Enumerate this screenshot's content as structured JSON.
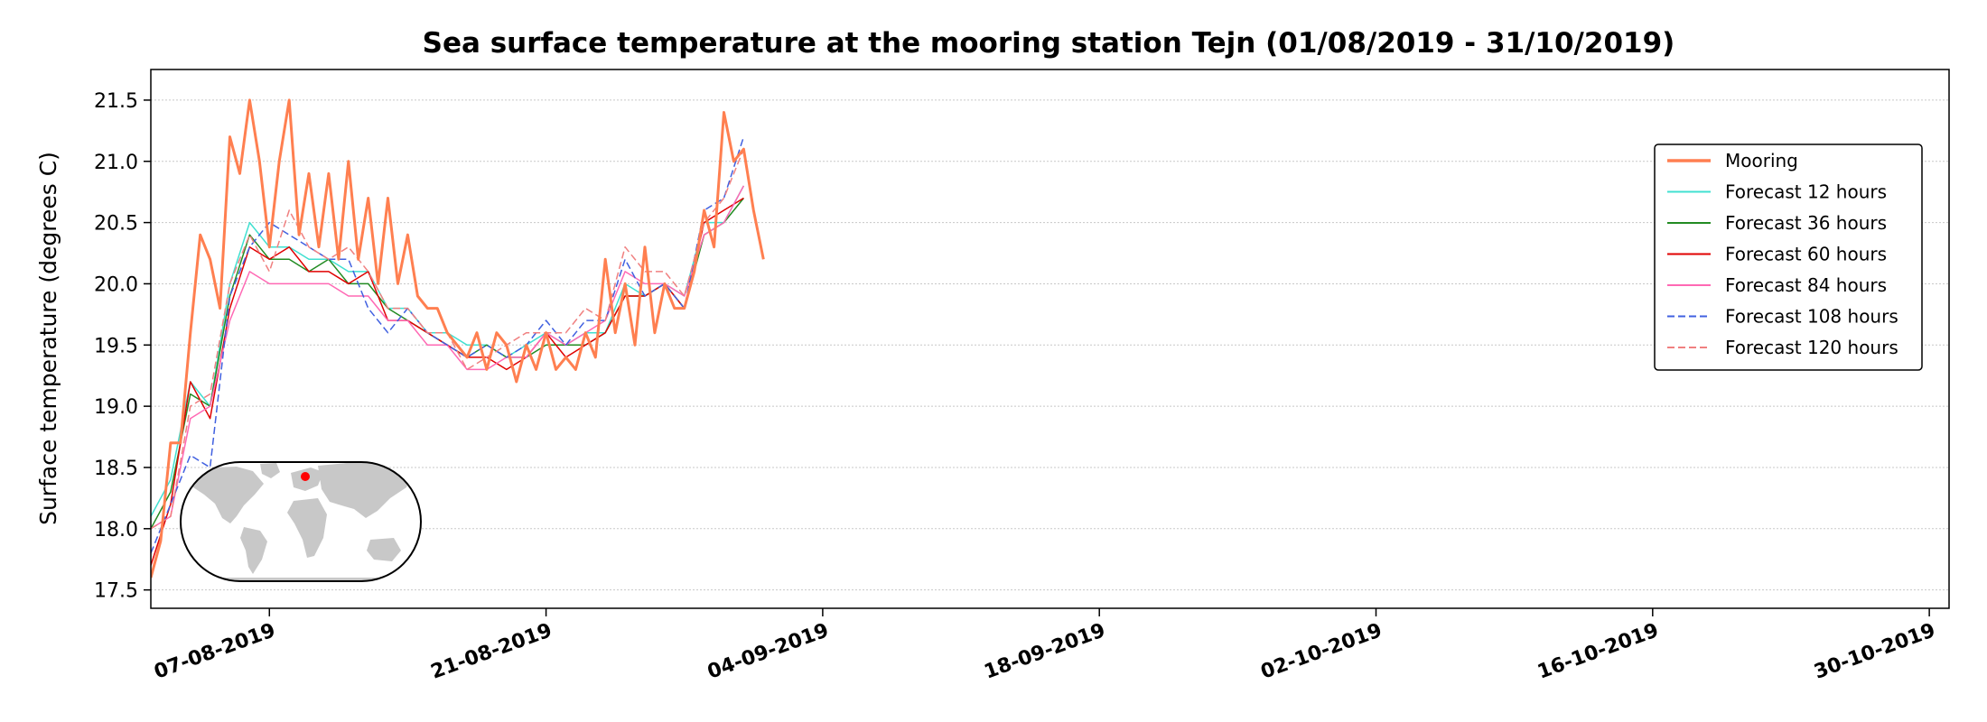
{
  "chart_data": {
    "type": "line",
    "title": "Sea surface temperature at the mooring station Tejn (01/08/2019 - 31/10/2019)",
    "ylabel": "Surface temperature (degrees C)",
    "xlabel": "",
    "xlim": [
      "2019-08-01",
      "2019-10-31"
    ],
    "ylim": [
      17.35,
      21.75
    ],
    "yticks": [
      17.5,
      18.0,
      18.5,
      19.0,
      19.5,
      20.0,
      20.5,
      21.0,
      21.5
    ],
    "ytick_labels": [
      "17.5",
      "18.0",
      "18.5",
      "19.0",
      "19.5",
      "20.0",
      "20.5",
      "21.0",
      "21.5"
    ],
    "xticks": [
      "2019-08-07",
      "2019-08-21",
      "2019-09-04",
      "2019-09-18",
      "2019-10-02",
      "2019-10-16",
      "2019-10-30"
    ],
    "xtick_labels": [
      "07-08-2019",
      "21-08-2019",
      "04-09-2019",
      "18-09-2019",
      "02-10-2019",
      "16-10-2019",
      "30-10-2019"
    ],
    "grid": "horizontal dotted",
    "legend_position": "right",
    "inset_map": {
      "marker_color": "#ff0000",
      "land_color": "#c8c8c8"
    },
    "series": [
      {
        "name": "Mooring",
        "color": "#ff7f50",
        "style": "solid",
        "width": 3,
        "x": [
          "2019-08-01",
          "2019-08-01 12:00",
          "2019-08-02",
          "2019-08-02 12:00",
          "2019-08-03",
          "2019-08-03 12:00",
          "2019-08-04",
          "2019-08-04 12:00",
          "2019-08-05",
          "2019-08-05 12:00",
          "2019-08-06",
          "2019-08-06 12:00",
          "2019-08-07",
          "2019-08-07 12:00",
          "2019-08-08",
          "2019-08-08 12:00",
          "2019-08-09",
          "2019-08-09 12:00",
          "2019-08-10",
          "2019-08-10 12:00",
          "2019-08-11",
          "2019-08-11 12:00",
          "2019-08-12",
          "2019-08-12 12:00",
          "2019-08-13",
          "2019-08-13 12:00",
          "2019-08-14",
          "2019-08-14 12:00",
          "2019-08-15",
          "2019-08-15 12:00",
          "2019-08-16",
          "2019-08-16 12:00",
          "2019-08-17",
          "2019-08-17 12:00",
          "2019-08-18",
          "2019-08-18 12:00",
          "2019-08-19",
          "2019-08-19 12:00",
          "2019-08-20",
          "2019-08-20 12:00",
          "2019-08-21",
          "2019-08-21 12:00",
          "2019-08-22",
          "2019-08-22 12:00",
          "2019-08-23",
          "2019-08-23 12:00",
          "2019-08-24",
          "2019-08-24 12:00",
          "2019-08-25",
          "2019-08-25 12:00",
          "2019-08-26",
          "2019-08-26 12:00",
          "2019-08-27",
          "2019-08-27 12:00",
          "2019-08-28",
          "2019-08-28 12:00",
          "2019-08-29",
          "2019-08-29 12:00",
          "2019-08-30",
          "2019-08-30 12:00",
          "2019-08-31",
          "2019-08-31 12:00",
          "2019-09-01"
        ],
        "y": [
          17.6,
          17.9,
          18.7,
          18.7,
          19.6,
          20.4,
          20.2,
          19.8,
          21.2,
          20.9,
          21.5,
          21.0,
          20.3,
          21.0,
          21.5,
          20.4,
          20.9,
          20.3,
          20.9,
          20.2,
          21.0,
          20.2,
          20.7,
          20.0,
          20.7,
          20.0,
          20.4,
          19.9,
          19.8,
          19.8,
          19.6,
          19.5,
          19.4,
          19.6,
          19.3,
          19.6,
          19.5,
          19.2,
          19.5,
          19.3,
          19.6,
          19.3,
          19.4,
          19.3,
          19.6,
          19.4,
          20.2,
          19.6,
          20.0,
          19.5,
          20.3,
          19.6,
          20.0,
          19.8,
          19.8,
          20.1,
          20.6,
          20.3,
          21.4,
          21.0,
          21.1,
          20.6,
          20.2
        ]
      },
      {
        "name": "Forecast 12 hours",
        "color": "#40e0d0",
        "style": "solid",
        "width": 1.5,
        "x": [
          "2019-08-01",
          "2019-08-02",
          "2019-08-03",
          "2019-08-04",
          "2019-08-05",
          "2019-08-06",
          "2019-08-07",
          "2019-08-08",
          "2019-08-09",
          "2019-08-10",
          "2019-08-11",
          "2019-08-12",
          "2019-08-13",
          "2019-08-14",
          "2019-08-15",
          "2019-08-16",
          "2019-08-17",
          "2019-08-18",
          "2019-08-19",
          "2019-08-20",
          "2019-08-21",
          "2019-08-22",
          "2019-08-23",
          "2019-08-24",
          "2019-08-25",
          "2019-08-26",
          "2019-08-27",
          "2019-08-28",
          "2019-08-29",
          "2019-08-30",
          "2019-08-31"
        ],
        "y": [
          18.1,
          18.4,
          19.2,
          19.0,
          20.0,
          20.5,
          20.3,
          20.3,
          20.2,
          20.2,
          20.1,
          20.1,
          19.8,
          19.8,
          19.6,
          19.6,
          19.5,
          19.5,
          19.4,
          19.5,
          19.6,
          19.5,
          19.6,
          19.6,
          20.0,
          19.9,
          20.0,
          19.9,
          20.5,
          20.5,
          20.8
        ]
      },
      {
        "name": "Forecast 36 hours",
        "color": "#228b22",
        "style": "solid",
        "width": 1.5,
        "x": [
          "2019-08-01",
          "2019-08-02",
          "2019-08-03",
          "2019-08-04",
          "2019-08-05",
          "2019-08-06",
          "2019-08-07",
          "2019-08-08",
          "2019-08-09",
          "2019-08-10",
          "2019-08-11",
          "2019-08-12",
          "2019-08-13",
          "2019-08-14",
          "2019-08-15",
          "2019-08-16",
          "2019-08-17",
          "2019-08-18",
          "2019-08-19",
          "2019-08-20",
          "2019-08-21",
          "2019-08-22",
          "2019-08-23",
          "2019-08-24",
          "2019-08-25",
          "2019-08-26",
          "2019-08-27",
          "2019-08-28",
          "2019-08-29",
          "2019-08-30",
          "2019-08-31"
        ],
        "y": [
          18.0,
          18.3,
          19.1,
          19.0,
          19.9,
          20.4,
          20.2,
          20.2,
          20.1,
          20.2,
          20.0,
          20.0,
          19.8,
          19.7,
          19.6,
          19.5,
          19.4,
          19.5,
          19.4,
          19.4,
          19.5,
          19.5,
          19.5,
          19.6,
          19.9,
          19.9,
          20.0,
          19.8,
          20.4,
          20.5,
          20.7
        ]
      },
      {
        "name": "Forecast 60 hours",
        "color": "#e00000",
        "style": "solid",
        "width": 1.5,
        "x": [
          "2019-08-01",
          "2019-08-02",
          "2019-08-03",
          "2019-08-04",
          "2019-08-05",
          "2019-08-06",
          "2019-08-07",
          "2019-08-08",
          "2019-08-09",
          "2019-08-10",
          "2019-08-11",
          "2019-08-12",
          "2019-08-13",
          "2019-08-14",
          "2019-08-15",
          "2019-08-16",
          "2019-08-17",
          "2019-08-18",
          "2019-08-19",
          "2019-08-20",
          "2019-08-21",
          "2019-08-22",
          "2019-08-23",
          "2019-08-24",
          "2019-08-25",
          "2019-08-26",
          "2019-08-27",
          "2019-08-28",
          "2019-08-29",
          "2019-08-30",
          "2019-08-31"
        ],
        "y": [
          17.7,
          18.2,
          19.2,
          18.9,
          19.8,
          20.3,
          20.2,
          20.3,
          20.1,
          20.1,
          20.0,
          20.1,
          19.7,
          19.7,
          19.6,
          19.5,
          19.4,
          19.4,
          19.3,
          19.4,
          19.6,
          19.4,
          19.5,
          19.6,
          19.9,
          19.9,
          20.0,
          19.8,
          20.5,
          20.6,
          20.7
        ]
      },
      {
        "name": "Forecast 84 hours",
        "color": "#ff69b4",
        "style": "solid",
        "width": 1.5,
        "x": [
          "2019-08-01",
          "2019-08-02",
          "2019-08-03",
          "2019-08-04",
          "2019-08-05",
          "2019-08-06",
          "2019-08-07",
          "2019-08-08",
          "2019-08-09",
          "2019-08-10",
          "2019-08-11",
          "2019-08-12",
          "2019-08-13",
          "2019-08-14",
          "2019-08-15",
          "2019-08-16",
          "2019-08-17",
          "2019-08-18",
          "2019-08-19",
          "2019-08-20",
          "2019-08-21",
          "2019-08-22",
          "2019-08-23",
          "2019-08-24",
          "2019-08-25",
          "2019-08-26",
          "2019-08-27",
          "2019-08-28",
          "2019-08-29",
          "2019-08-30",
          "2019-08-31"
        ],
        "y": [
          18.0,
          18.1,
          18.9,
          19.0,
          19.7,
          20.1,
          20.0,
          20.0,
          20.0,
          20.0,
          19.9,
          19.9,
          19.7,
          19.7,
          19.5,
          19.5,
          19.3,
          19.3,
          19.4,
          19.4,
          19.6,
          19.5,
          19.6,
          19.7,
          20.1,
          20.0,
          20.0,
          19.9,
          20.4,
          20.5,
          20.8
        ]
      },
      {
        "name": "Forecast 108 hours",
        "color": "#4060e0",
        "style": "dashed",
        "width": 1.5,
        "x": [
          "2019-08-01",
          "2019-08-02",
          "2019-08-03",
          "2019-08-04",
          "2019-08-05",
          "2019-08-06",
          "2019-08-07",
          "2019-08-08",
          "2019-08-09",
          "2019-08-10",
          "2019-08-11",
          "2019-08-12",
          "2019-08-13",
          "2019-08-14",
          "2019-08-15",
          "2019-08-16",
          "2019-08-17",
          "2019-08-18",
          "2019-08-19",
          "2019-08-20",
          "2019-08-21",
          "2019-08-22",
          "2019-08-23",
          "2019-08-24",
          "2019-08-25",
          "2019-08-26",
          "2019-08-27",
          "2019-08-28",
          "2019-08-29",
          "2019-08-30",
          "2019-08-31"
        ],
        "y": [
          17.8,
          18.2,
          18.6,
          18.5,
          19.9,
          20.3,
          20.5,
          20.4,
          20.3,
          20.2,
          20.2,
          19.8,
          19.6,
          19.8,
          19.6,
          19.5,
          19.4,
          19.5,
          19.4,
          19.5,
          19.7,
          19.5,
          19.7,
          19.7,
          20.2,
          19.9,
          20.0,
          19.8,
          20.6,
          20.7,
          21.2
        ]
      },
      {
        "name": "Forecast 120 hours",
        "color": "#f08080",
        "style": "dashed",
        "width": 1.5,
        "x": [
          "2019-08-01",
          "2019-08-02",
          "2019-08-03",
          "2019-08-04",
          "2019-08-05",
          "2019-08-06",
          "2019-08-07",
          "2019-08-08",
          "2019-08-09",
          "2019-08-10",
          "2019-08-11",
          "2019-08-12",
          "2019-08-13",
          "2019-08-14",
          "2019-08-15",
          "2019-08-16",
          "2019-08-17",
          "2019-08-18",
          "2019-08-19",
          "2019-08-20",
          "2019-08-21",
          "2019-08-22",
          "2019-08-23",
          "2019-08-24",
          "2019-08-25",
          "2019-08-26",
          "2019-08-27",
          "2019-08-28",
          "2019-08-29",
          "2019-08-30",
          "2019-08-31"
        ],
        "y": [
          18.0,
          18.1,
          19.0,
          19.1,
          20.0,
          20.4,
          20.1,
          20.6,
          20.3,
          20.2,
          20.3,
          20.1,
          19.8,
          19.8,
          19.6,
          19.6,
          19.3,
          19.4,
          19.5,
          19.6,
          19.6,
          19.6,
          19.8,
          19.7,
          20.3,
          20.1,
          20.1,
          19.9,
          20.5,
          20.7,
          21.1
        ]
      }
    ]
  }
}
